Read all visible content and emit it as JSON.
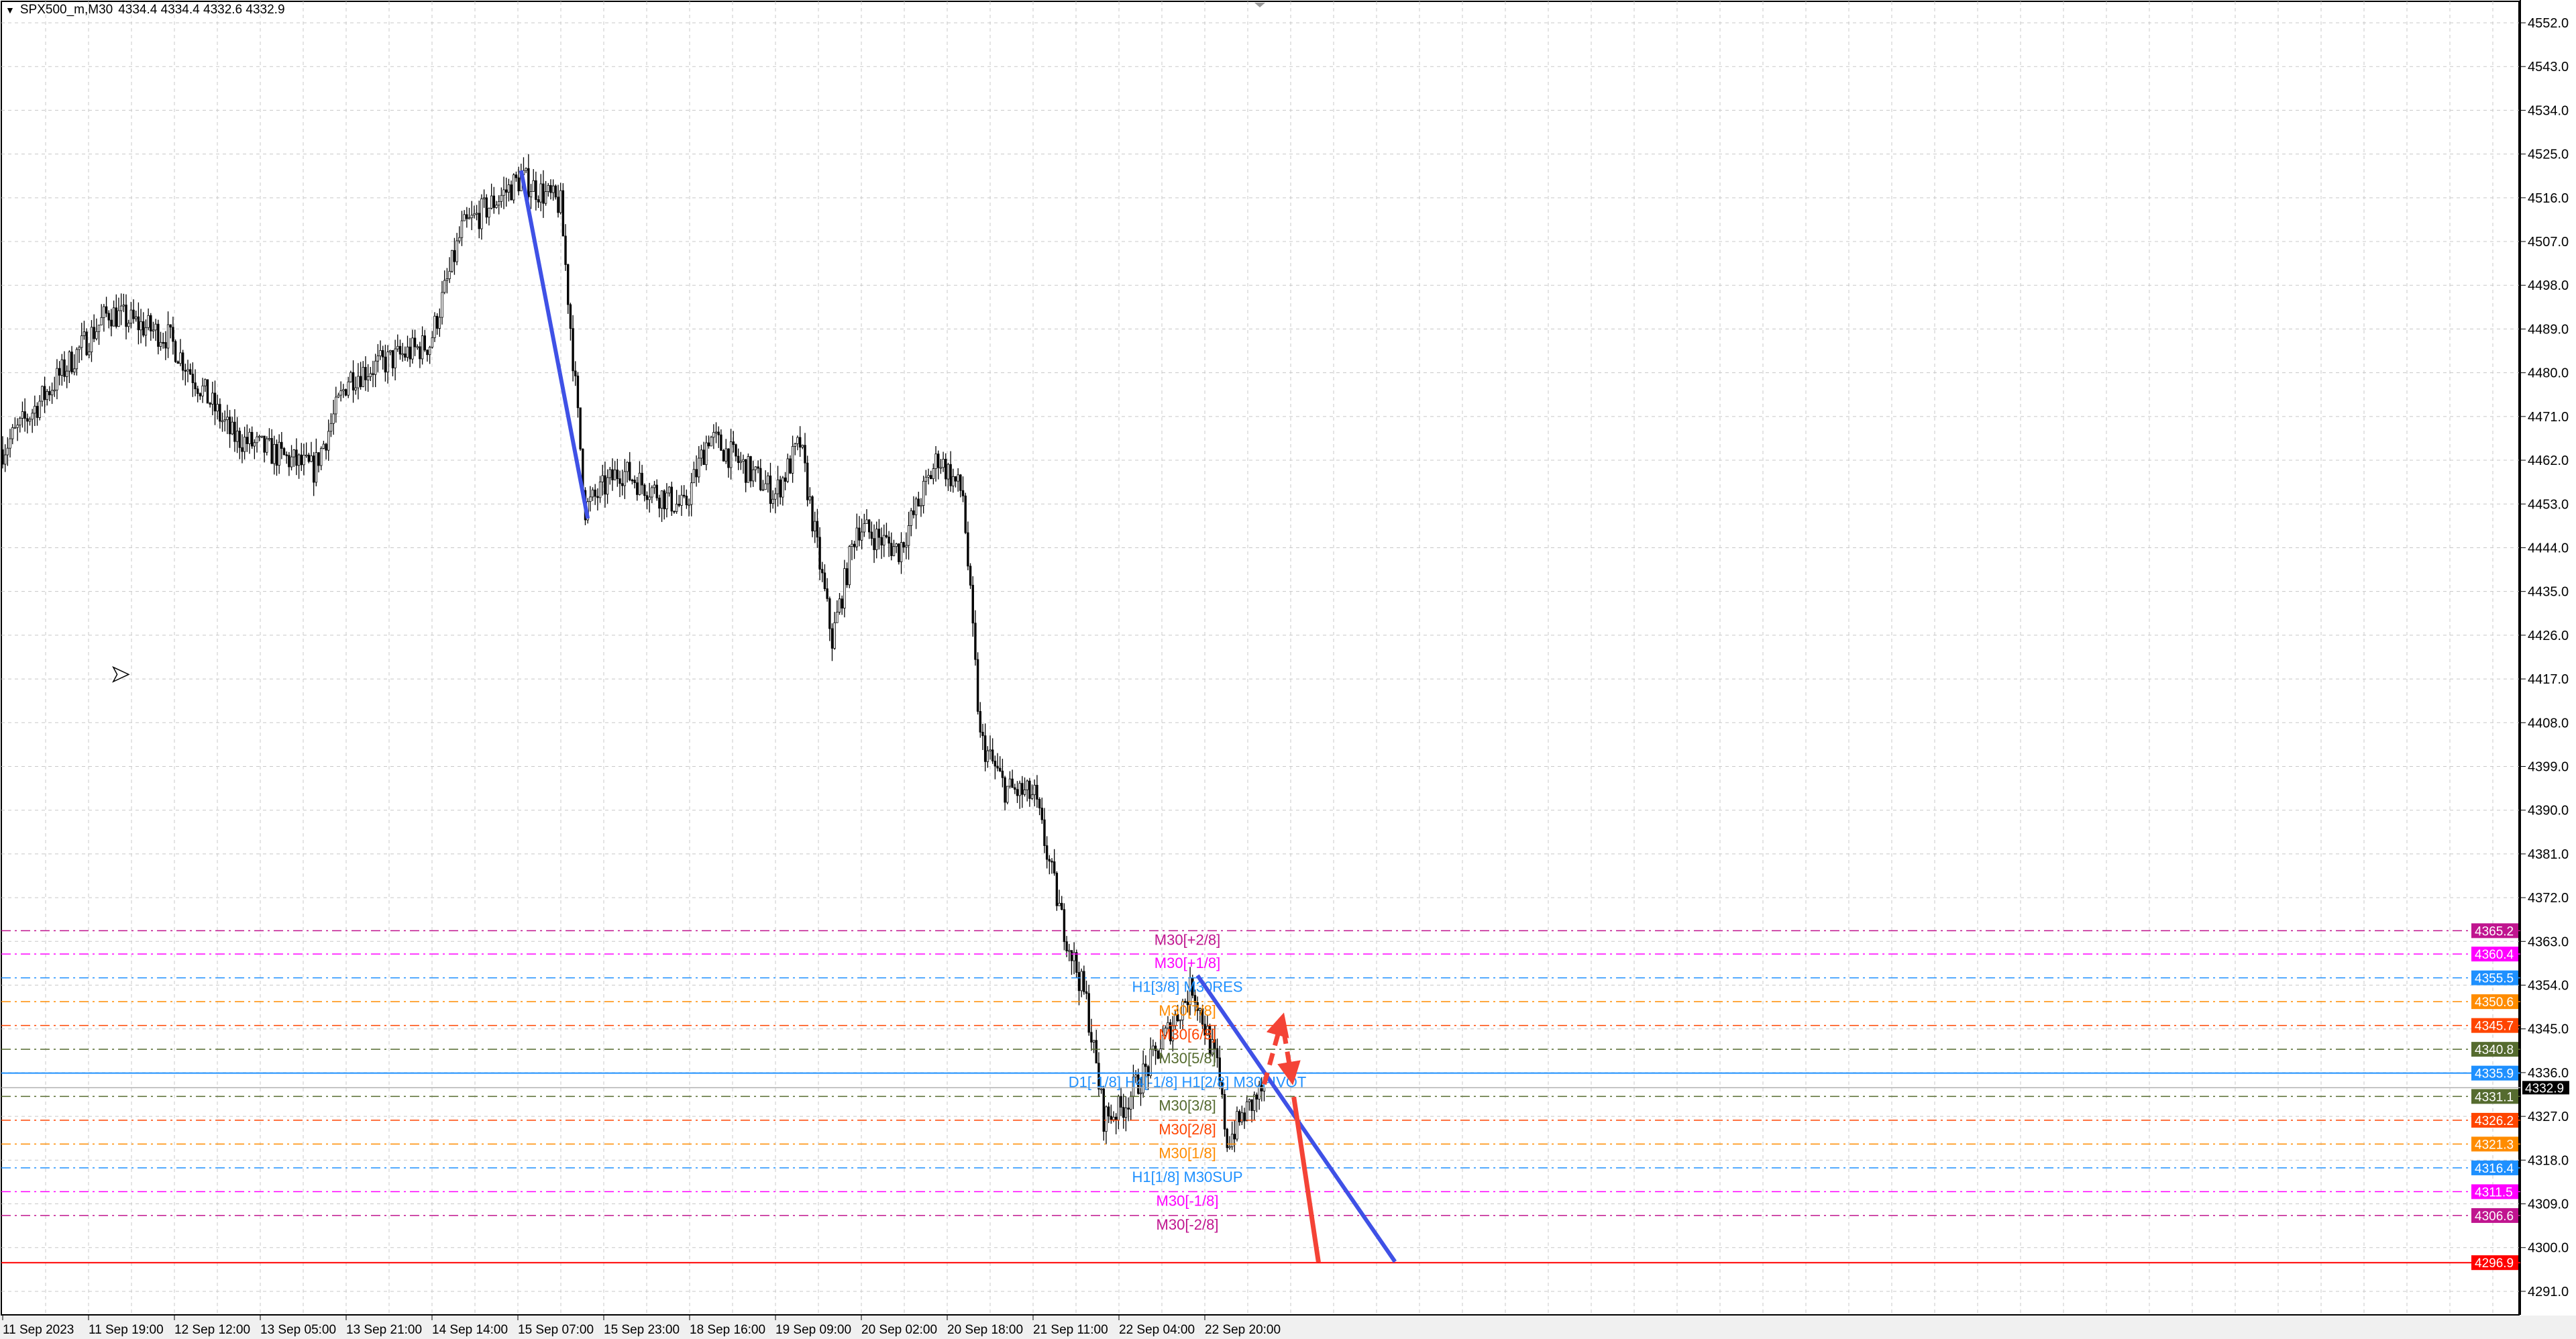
{
  "header": {
    "symbol": "SPX500_m,M30",
    "ohlc": "4334.4 4334.4 4332.6 4332.9"
  },
  "chart_data": {
    "type": "candlestick",
    "symbol": "SPX500_m",
    "timeframe": "M30",
    "ylim": [
      4287,
      4555
    ],
    "grid": true,
    "price_ticks": [
      4552.0,
      4543.0,
      4534.0,
      4525.0,
      4516.0,
      4507.0,
      4498.0,
      4489.0,
      4480.0,
      4471.0,
      4462.0,
      4453.0,
      4444.0,
      4435.0,
      4426.0,
      4417.0,
      4408.0,
      4399.0,
      4390.0,
      4381.0,
      4372.0,
      4363.0,
      4354.0,
      4345.0,
      4336.0,
      4327.0,
      4318.0,
      4309.0,
      4300.0,
      4291.0
    ],
    "time_ticks": [
      "11 Sep 2023",
      "11 Sep 19:00",
      "12 Sep 12:00",
      "13 Sep 05:00",
      "13 Sep 21:00",
      "14 Sep 14:00",
      "15 Sep 07:00",
      "15 Sep 23:00",
      "18 Sep 16:00",
      "19 Sep 09:00",
      "20 Sep 02:00",
      "20 Sep 18:00",
      "21 Sep 11:00",
      "22 Sep 04:00",
      "22 Sep 20:00"
    ],
    "price_path_bar_index": [
      [
        2,
        4465.5
      ],
      [
        30,
        4484
      ],
      [
        43,
        4492.5
      ],
      [
        67,
        4487.4
      ],
      [
        93,
        4467
      ],
      [
        126,
        4460
      ],
      [
        140,
        4479
      ],
      [
        173,
        4486
      ],
      [
        186,
        4509.4
      ],
      [
        210,
        4520
      ],
      [
        226,
        4514.5
      ],
      [
        236,
        4452
      ],
      [
        250,
        4460
      ],
      [
        276,
        4452
      ],
      [
        286,
        4467
      ],
      [
        313,
        4455
      ],
      [
        323,
        4465.5
      ],
      [
        336,
        4425
      ],
      [
        346,
        4448.6
      ],
      [
        363,
        4443.5
      ],
      [
        379,
        4462.7
      ],
      [
        389,
        4455
      ],
      [
        396,
        4404.6
      ],
      [
        406,
        4394.5
      ],
      [
        418,
        4392.8
      ],
      [
        429,
        4367.4
      ],
      [
        439,
        4350.5
      ],
      [
        446,
        4326.8
      ],
      [
        453,
        4328.5
      ],
      [
        466,
        4338.7
      ],
      [
        482,
        4353.9
      ],
      [
        492,
        4337
      ],
      [
        496,
        4321.8
      ],
      [
        502,
        4326.8
      ],
      [
        511,
        4332.9
      ]
    ],
    "current_price": "4332.9",
    "levels": [
      {
        "price": "4365.2",
        "label": "M30[+2/8]",
        "color": "#c0158f",
        "style": "dashdot"
      },
      {
        "price": "4360.4",
        "label": "M30[+1/8]",
        "color": "#ff00ff",
        "style": "dashdot"
      },
      {
        "price": "4355.5",
        "label": "H1[3/8] M30RES",
        "color": "#1e90ff",
        "style": "dashdot"
      },
      {
        "price": "4350.6",
        "label": "M30[7/8]",
        "color": "#ff8c00",
        "style": "dashdot"
      },
      {
        "price": "4345.7",
        "label": "M30[6/8]",
        "color": "#ff4500",
        "style": "dashdot"
      },
      {
        "price": "4340.8",
        "label": "M30[5/8]",
        "color": "#556b2f",
        "style": "dashdot"
      },
      {
        "price": "4335.9",
        "label": "D1[-1/8] H4[-1/8] H1[2/8] M30PIVOT",
        "color": "#1e90ff",
        "style": "solid"
      },
      {
        "price": "4331.1",
        "label": "M30[3/8]",
        "color": "#556b2f",
        "style": "dashdot"
      },
      {
        "price": "4326.2",
        "label": "M30[2/8]",
        "color": "#ff4500",
        "style": "dashdot"
      },
      {
        "price": "4321.3",
        "label": "M30[1/8]",
        "color": "#ff8c00",
        "style": "dashdot"
      },
      {
        "price": "4316.4",
        "label": "H1[1/8] M30SUP",
        "color": "#1e90ff",
        "style": "dashdot"
      },
      {
        "price": "4311.5",
        "label": "M30[-1/8]",
        "color": "#ff00ff",
        "style": "dashdot"
      },
      {
        "price": "4306.6",
        "label": "M30[-2/8]",
        "color": "#c0158f",
        "style": "dashdot"
      },
      {
        "price": "4296.9",
        "label": "",
        "color": "#ff0000",
        "style": "solid"
      }
    ],
    "trendlines": [
      {
        "from": [
          210,
          4521.6
        ],
        "to": [
          237,
          4450
        ],
        "color": "#3f51e6"
      },
      {
        "from": [
          484,
          4356
        ],
        "to": [
          564,
          4297.1
        ],
        "color": "#3f51e6"
      }
    ],
    "arrows": [
      {
        "from": [
          511,
          4333.6
        ],
        "to": [
          518,
          4346.5
        ],
        "color": "#f44336",
        "dashed": true
      },
      {
        "from": [
          519,
          4344.4
        ],
        "to": [
          522,
          4335.3
        ],
        "color": "#f44336",
        "dashed": true
      },
      {
        "from": [
          523,
          4331
        ],
        "to": [
          533,
          4297
        ],
        "color": "#f44336",
        "dashed": false
      }
    ]
  }
}
